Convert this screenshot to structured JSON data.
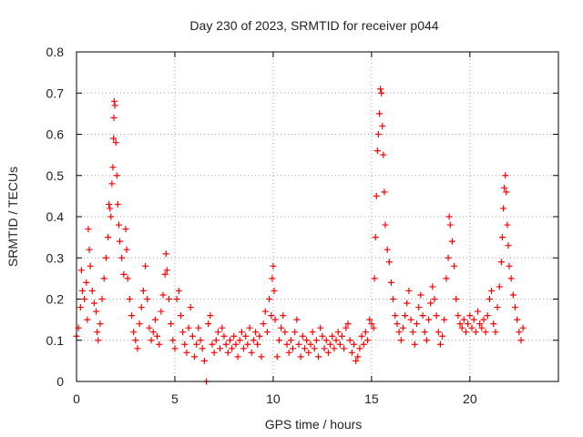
{
  "chart_data": {
    "type": "scatter",
    "title": "Day 230 of 2023, SRMTID for receiver p044",
    "xlabel": "GPS time / hours",
    "ylabel": "SRMTID / TECUs",
    "xlim": [
      0,
      24.5
    ],
    "ylim": [
      0,
      0.8
    ],
    "grid": true,
    "marker": "+",
    "color": "#ff0000",
    "x_ticks": [
      0,
      5,
      10,
      15,
      20
    ],
    "x_tick_labels": [
      "0",
      "5",
      "10",
      "15",
      "20"
    ],
    "y_ticks": [
      0,
      0.1,
      0.2,
      0.3,
      0.4,
      0.5,
      0.6,
      0.7,
      0.8
    ],
    "y_tick_labels": [
      "0",
      "0.1",
      "0.2",
      "0.3",
      "0.4",
      "0.5",
      "0.6",
      "0.7",
      "0.8"
    ],
    "series": [
      {
        "name": "SRMTID",
        "points": [
          [
            0.0,
            0.11
          ],
          [
            0.1,
            0.13
          ],
          [
            0.2,
            0.18
          ],
          [
            0.25,
            0.27
          ],
          [
            0.3,
            0.22
          ],
          [
            0.4,
            0.2
          ],
          [
            0.5,
            0.24
          ],
          [
            0.55,
            0.15
          ],
          [
            0.6,
            0.37
          ],
          [
            0.65,
            0.32
          ],
          [
            0.7,
            0.28
          ],
          [
            0.8,
            0.22
          ],
          [
            0.9,
            0.19
          ],
          [
            1.0,
            0.17
          ],
          [
            1.05,
            0.12
          ],
          [
            1.1,
            0.1
          ],
          [
            1.2,
            0.14
          ],
          [
            1.3,
            0.2
          ],
          [
            1.4,
            0.25
          ],
          [
            1.5,
            0.3
          ],
          [
            1.6,
            0.35
          ],
          [
            1.65,
            0.43
          ],
          [
            1.7,
            0.42
          ],
          [
            1.75,
            0.4
          ],
          [
            1.8,
            0.48
          ],
          [
            1.85,
            0.52
          ],
          [
            1.88,
            0.59
          ],
          [
            1.9,
            0.64
          ],
          [
            1.92,
            0.68
          ],
          [
            1.95,
            0.67
          ],
          [
            2.0,
            0.58
          ],
          [
            2.05,
            0.5
          ],
          [
            2.1,
            0.43
          ],
          [
            2.15,
            0.38
          ],
          [
            2.2,
            0.34
          ],
          [
            2.3,
            0.3
          ],
          [
            2.4,
            0.26
          ],
          [
            2.5,
            0.37
          ],
          [
            2.55,
            0.32
          ],
          [
            2.6,
            0.25
          ],
          [
            2.7,
            0.2
          ],
          [
            2.8,
            0.16
          ],
          [
            2.9,
            0.12
          ],
          [
            3.0,
            0.1
          ],
          [
            3.1,
            0.08
          ],
          [
            3.2,
            0.14
          ],
          [
            3.3,
            0.18
          ],
          [
            3.4,
            0.22
          ],
          [
            3.5,
            0.28
          ],
          [
            3.6,
            0.2
          ],
          [
            3.7,
            0.13
          ],
          [
            3.8,
            0.1
          ],
          [
            3.9,
            0.12
          ],
          [
            4.0,
            0.15
          ],
          [
            4.1,
            0.11
          ],
          [
            4.2,
            0.09
          ],
          [
            4.3,
            0.17
          ],
          [
            4.4,
            0.21
          ],
          [
            4.5,
            0.26
          ],
          [
            4.55,
            0.31
          ],
          [
            4.6,
            0.27
          ],
          [
            4.7,
            0.2
          ],
          [
            4.8,
            0.14
          ],
          [
            4.9,
            0.1
          ],
          [
            5.0,
            0.08
          ],
          [
            5.1,
            0.2
          ],
          [
            5.2,
            0.22
          ],
          [
            5.3,
            0.16
          ],
          [
            5.4,
            0.12
          ],
          [
            5.5,
            0.09
          ],
          [
            5.6,
            0.07
          ],
          [
            5.7,
            0.13
          ],
          [
            5.8,
            0.18
          ],
          [
            5.9,
            0.11
          ],
          [
            6.0,
            0.06
          ],
          [
            6.1,
            0.09
          ],
          [
            6.2,
            0.13
          ],
          [
            6.3,
            0.1
          ],
          [
            6.4,
            0.08
          ],
          [
            6.5,
            0.05
          ],
          [
            6.6,
            0.0
          ],
          [
            6.7,
            0.14
          ],
          [
            6.8,
            0.16
          ],
          [
            6.9,
            0.09
          ],
          [
            7.0,
            0.07
          ],
          [
            7.1,
            0.1
          ],
          [
            7.2,
            0.12
          ],
          [
            7.3,
            0.08
          ],
          [
            7.4,
            0.13
          ],
          [
            7.5,
            0.11
          ],
          [
            7.6,
            0.09
          ],
          [
            7.7,
            0.07
          ],
          [
            7.8,
            0.1
          ],
          [
            7.9,
            0.08
          ],
          [
            8.0,
            0.11
          ],
          [
            8.1,
            0.09
          ],
          [
            8.2,
            0.06
          ],
          [
            8.3,
            0.1
          ],
          [
            8.4,
            0.12
          ],
          [
            8.5,
            0.08
          ],
          [
            8.6,
            0.11
          ],
          [
            8.7,
            0.09
          ],
          [
            8.8,
            0.13
          ],
          [
            8.9,
            0.07
          ],
          [
            9.0,
            0.1
          ],
          [
            9.1,
            0.12
          ],
          [
            9.2,
            0.09
          ],
          [
            9.3,
            0.11
          ],
          [
            9.4,
            0.06
          ],
          [
            9.5,
            0.14
          ],
          [
            9.6,
            0.17
          ],
          [
            9.7,
            0.12
          ],
          [
            9.8,
            0.2
          ],
          [
            9.9,
            0.16
          ],
          [
            9.95,
            0.25
          ],
          [
            10.0,
            0.28
          ],
          [
            10.05,
            0.22
          ],
          [
            10.1,
            0.15
          ],
          [
            10.2,
            0.06
          ],
          [
            10.3,
            0.1
          ],
          [
            10.4,
            0.13
          ],
          [
            10.5,
            0.16
          ],
          [
            10.6,
            0.12
          ],
          [
            10.7,
            0.09
          ],
          [
            10.8,
            0.07
          ],
          [
            10.9,
            0.1
          ],
          [
            11.0,
            0.08
          ],
          [
            11.1,
            0.12
          ],
          [
            11.2,
            0.15
          ],
          [
            11.3,
            0.09
          ],
          [
            11.4,
            0.06
          ],
          [
            11.5,
            0.11
          ],
          [
            11.6,
            0.08
          ],
          [
            11.7,
            0.1
          ],
          [
            11.8,
            0.07
          ],
          [
            11.9,
            0.09
          ],
          [
            12.0,
            0.12
          ],
          [
            12.1,
            0.08
          ],
          [
            12.2,
            0.1
          ],
          [
            12.3,
            0.06
          ],
          [
            12.4,
            0.13
          ],
          [
            12.5,
            0.11
          ],
          [
            12.6,
            0.08
          ],
          [
            12.7,
            0.1
          ],
          [
            12.8,
            0.07
          ],
          [
            12.9,
            0.09
          ],
          [
            13.0,
            0.11
          ],
          [
            13.1,
            0.08
          ],
          [
            13.2,
            0.1
          ],
          [
            13.3,
            0.12
          ],
          [
            13.4,
            0.09
          ],
          [
            13.5,
            0.11
          ],
          [
            13.6,
            0.08
          ],
          [
            13.7,
            0.13
          ],
          [
            13.8,
            0.14
          ],
          [
            13.9,
            0.1
          ],
          [
            14.0,
            0.07
          ],
          [
            14.1,
            0.09
          ],
          [
            14.2,
            0.05
          ],
          [
            14.3,
            0.06
          ],
          [
            14.4,
            0.08
          ],
          [
            14.5,
            0.11
          ],
          [
            14.6,
            0.09
          ],
          [
            14.7,
            0.12
          ],
          [
            14.8,
            0.1
          ],
          [
            14.9,
            0.15
          ],
          [
            15.0,
            0.14
          ],
          [
            15.1,
            0.13
          ],
          [
            15.15,
            0.25
          ],
          [
            15.2,
            0.35
          ],
          [
            15.25,
            0.45
          ],
          [
            15.3,
            0.56
          ],
          [
            15.35,
            0.6
          ],
          [
            15.4,
            0.65
          ],
          [
            15.45,
            0.71
          ],
          [
            15.5,
            0.7
          ],
          [
            15.55,
            0.62
          ],
          [
            15.6,
            0.55
          ],
          [
            15.65,
            0.46
          ],
          [
            15.7,
            0.38
          ],
          [
            15.8,
            0.32
          ],
          [
            15.9,
            0.29
          ],
          [
            16.0,
            0.24
          ],
          [
            16.1,
            0.2
          ],
          [
            16.2,
            0.16
          ],
          [
            16.3,
            0.14
          ],
          [
            16.4,
            0.12
          ],
          [
            16.5,
            0.1
          ],
          [
            16.6,
            0.13
          ],
          [
            16.7,
            0.16
          ],
          [
            16.8,
            0.19
          ],
          [
            16.9,
            0.22
          ],
          [
            17.0,
            0.15
          ],
          [
            17.1,
            0.12
          ],
          [
            17.2,
            0.09
          ],
          [
            17.3,
            0.14
          ],
          [
            17.4,
            0.18
          ],
          [
            17.5,
            0.21
          ],
          [
            17.6,
            0.16
          ],
          [
            17.7,
            0.12
          ],
          [
            17.8,
            0.1
          ],
          [
            17.9,
            0.15
          ],
          [
            18.0,
            0.19
          ],
          [
            18.1,
            0.23
          ],
          [
            18.2,
            0.2
          ],
          [
            18.3,
            0.16
          ],
          [
            18.4,
            0.12
          ],
          [
            18.5,
            0.09
          ],
          [
            18.6,
            0.11
          ],
          [
            18.7,
            0.15
          ],
          [
            18.8,
            0.25
          ],
          [
            18.9,
            0.3
          ],
          [
            18.95,
            0.4
          ],
          [
            19.0,
            0.38
          ],
          [
            19.1,
            0.34
          ],
          [
            19.2,
            0.28
          ],
          [
            19.3,
            0.2
          ],
          [
            19.4,
            0.16
          ],
          [
            19.5,
            0.14
          ],
          [
            19.6,
            0.13
          ],
          [
            19.7,
            0.15
          ],
          [
            19.8,
            0.12
          ],
          [
            19.9,
            0.14
          ],
          [
            20.0,
            0.16
          ],
          [
            20.1,
            0.13
          ],
          [
            20.2,
            0.15
          ],
          [
            20.3,
            0.12
          ],
          [
            20.4,
            0.17
          ],
          [
            20.5,
            0.14
          ],
          [
            20.6,
            0.13
          ],
          [
            20.7,
            0.15
          ],
          [
            20.8,
            0.12
          ],
          [
            20.9,
            0.16
          ],
          [
            21.0,
            0.2
          ],
          [
            21.1,
            0.22
          ],
          [
            21.2,
            0.14
          ],
          [
            21.3,
            0.12
          ],
          [
            21.4,
            0.18
          ],
          [
            21.5,
            0.23
          ],
          [
            21.6,
            0.29
          ],
          [
            21.65,
            0.35
          ],
          [
            21.7,
            0.42
          ],
          [
            21.75,
            0.47
          ],
          [
            21.8,
            0.5
          ],
          [
            21.85,
            0.46
          ],
          [
            21.9,
            0.38
          ],
          [
            21.95,
            0.33
          ],
          [
            22.0,
            0.28
          ],
          [
            22.1,
            0.25
          ],
          [
            22.2,
            0.21
          ],
          [
            22.3,
            0.18
          ],
          [
            22.4,
            0.15
          ],
          [
            22.5,
            0.12
          ],
          [
            22.6,
            0.1
          ],
          [
            22.7,
            0.13
          ]
        ]
      }
    ]
  }
}
